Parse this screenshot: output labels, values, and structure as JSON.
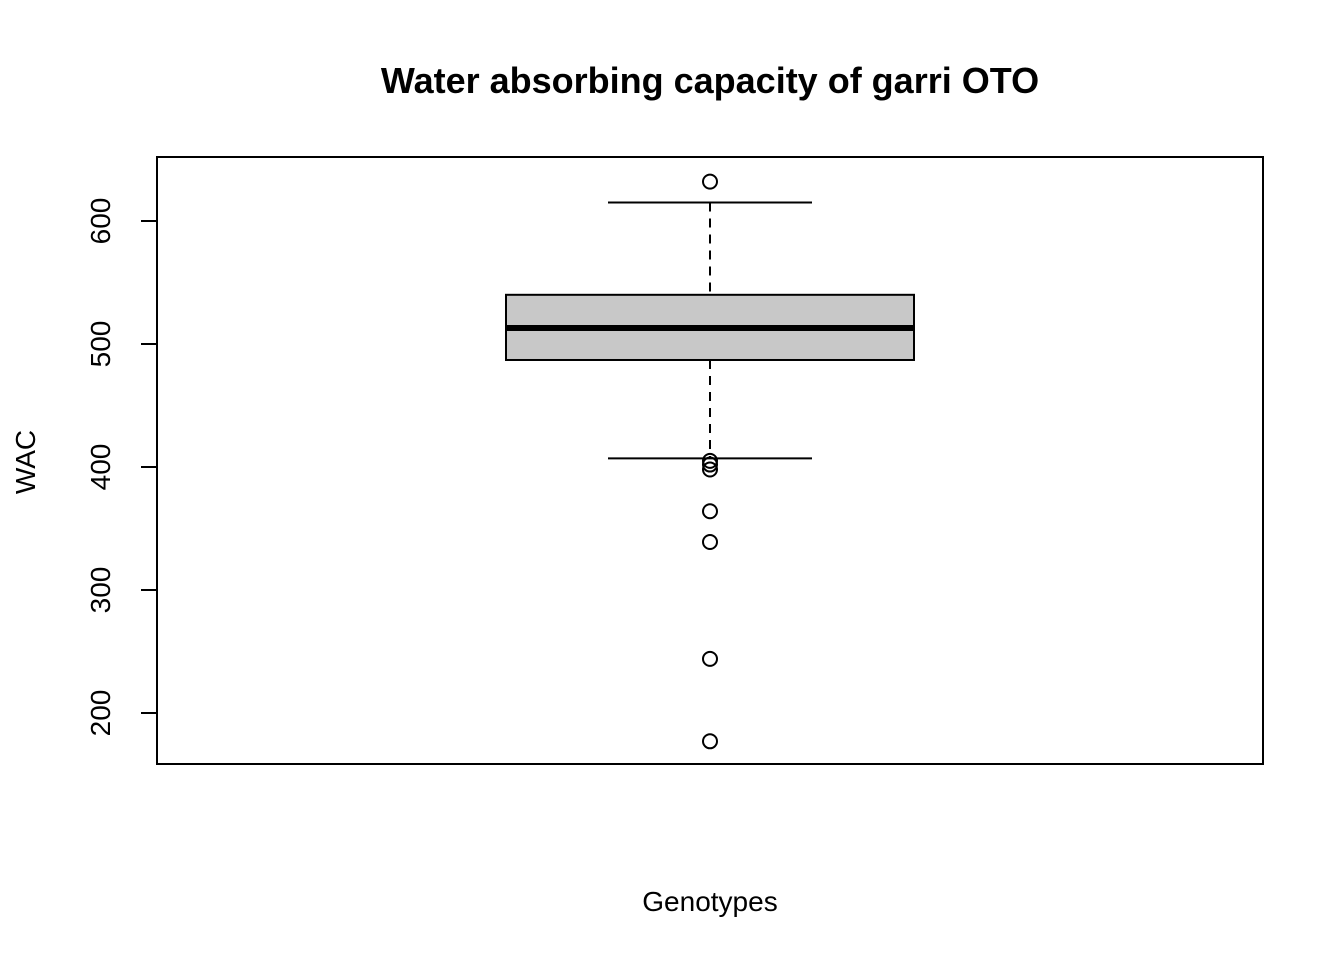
{
  "chart_data": {
    "type": "boxplot",
    "title": "Water absorbing capacity of garri OTO",
    "xlabel": "Genotypes",
    "ylabel": "WAC",
    "ylim": [
      157,
      650
    ],
    "yticks": [
      200,
      300,
      400,
      500,
      600
    ],
    "grid": false,
    "box": {
      "lower_whisker": 407,
      "q1": 487,
      "median": 513,
      "q3": 540,
      "upper_whisker": 615,
      "outliers": [
        632,
        405,
        402,
        398,
        364,
        339,
        244,
        177
      ]
    },
    "colors": {
      "box_fill": "#c8c8c8",
      "stroke": "#000000"
    }
  }
}
